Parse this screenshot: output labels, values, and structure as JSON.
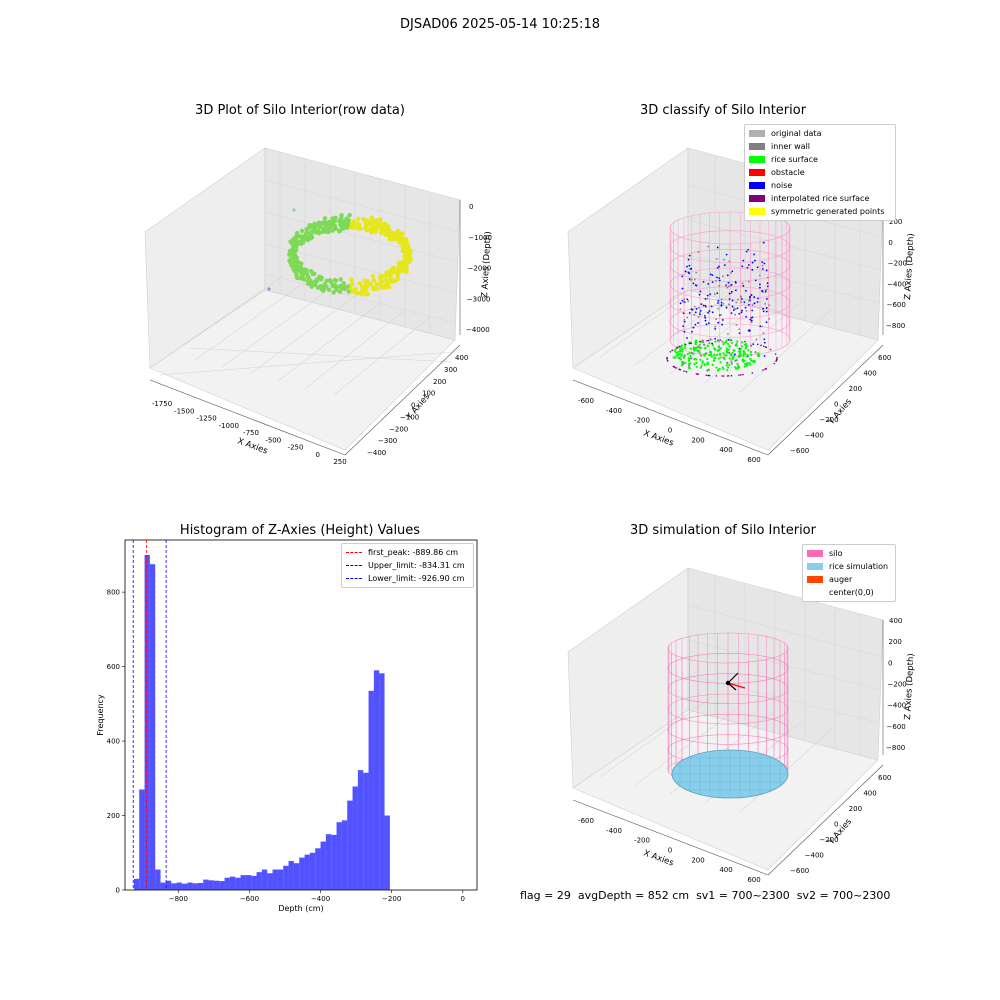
{
  "suptitle": "DJSAD06 2025-05-14 10:25:18",
  "footer": {
    "flag": "flag = 29",
    "avg_depth": "avgDepth = 852 cm",
    "sv1": "sv1 = 700~2300",
    "sv2": "sv2 = 700~2300"
  },
  "panels": {
    "raw": {
      "title": "3D Plot of Silo Interior(row data)",
      "xlabel": "X Axies",
      "ylabel": "Y Axies",
      "zlabel": "Z Axies (Depth)",
      "xticks": [
        "-1750",
        "-1500",
        "-1250",
        "-1000",
        "-750",
        "-500",
        "-250",
        "0",
        "250"
      ],
      "yticks": [
        "400",
        "300",
        "200",
        "100",
        "0",
        "−100",
        "−200",
        "−300",
        "−400"
      ],
      "zticks": [
        "0",
        "−1000",
        "−2000",
        "−3000",
        "−4000"
      ]
    },
    "classify": {
      "title": "3D classify of Silo Interior",
      "xlabel": "X Axies",
      "ylabel": "Y Axies",
      "zlabel": "Z Axies (Depth)",
      "xticks": [
        "-600",
        "-400",
        "-200",
        "0",
        "200",
        "400",
        "600"
      ],
      "yticks": [
        "600",
        "400",
        "200",
        "0",
        "−200",
        "−400",
        "−600"
      ],
      "zticks": [
        "200",
        "0",
        "−200",
        "−400",
        "−600",
        "−800"
      ],
      "legend": [
        {
          "label": "original data",
          "color": "#b0b0b0"
        },
        {
          "label": "inner wall",
          "color": "#808080"
        },
        {
          "label": "rice surface",
          "color": "#00ff00"
        },
        {
          "label": "obstacle",
          "color": "#ff0000"
        },
        {
          "label": "noise",
          "color": "#0000ff"
        },
        {
          "label": "interpolated rice surface",
          "color": "#800080"
        },
        {
          "label": "symmetric generated points",
          "color": "#ffff00"
        }
      ]
    },
    "simulation": {
      "title": "3D simulation of Silo Interior",
      "xlabel": "X Axies",
      "ylabel": "Y Axies",
      "zlabel": "Z Axies (Depth)",
      "xticks": [
        "-600",
        "-400",
        "-200",
        "0",
        "200",
        "400",
        "600"
      ],
      "yticks": [
        "600",
        "400",
        "200",
        "0",
        "−200",
        "−400",
        "−600"
      ],
      "zticks": [
        "400",
        "200",
        "0",
        "−200",
        "−400",
        "−600",
        "−800"
      ],
      "legend": [
        {
          "label": "silo",
          "color": "#ff69b4"
        },
        {
          "label": "rice simulation",
          "color": "#87ceeb"
        },
        {
          "label": "auger",
          "color": "#ff4500"
        },
        {
          "label": "center(0,0)",
          "color": "#ffffff"
        }
      ]
    }
  },
  "chart_data": {
    "type": "bar",
    "title": "Histogram of Z-Axies (Height) Values",
    "xlabel": "Depth (cm)",
    "ylabel": "Frequency",
    "xlim": [
      -950,
      40
    ],
    "ylim": [
      0,
      940
    ],
    "xticks": [
      -800,
      -600,
      -400,
      -200,
      0
    ],
    "yticks": [
      0,
      200,
      400,
      600,
      800
    ],
    "bar_color": "#0000ff",
    "bins": {
      "left_edges": [
        -925,
        -910,
        -895,
        -880,
        -865,
        -850,
        -835,
        -820,
        -805,
        -790,
        -775,
        -760,
        -745,
        -730,
        -715,
        -700,
        -685,
        -670,
        -655,
        -640,
        -625,
        -610,
        -595,
        -580,
        -565,
        -550,
        -535,
        -520,
        -505,
        -490,
        -475,
        -460,
        -445,
        -430,
        -415,
        -400,
        -385,
        -370,
        -355,
        -340,
        -325,
        -310,
        -295,
        -280,
        -265,
        -250,
        -235,
        -220,
        -205,
        -190,
        -175,
        -160,
        -145,
        -130,
        -115,
        -100,
        -85,
        -70,
        -55,
        -40,
        -25,
        -10
      ],
      "width": 15,
      "values": [
        30,
        270,
        900,
        875,
        55,
        20,
        25,
        18,
        20,
        17,
        20,
        18,
        19,
        28,
        26,
        25,
        24,
        33,
        36,
        33,
        40,
        40,
        38,
        48,
        55,
        45,
        55,
        55,
        65,
        78,
        72,
        87,
        95,
        100,
        112,
        130,
        150,
        148,
        182,
        187,
        240,
        278,
        322,
        315,
        535,
        590,
        582,
        200,
        0,
        0,
        0,
        0,
        0,
        0,
        0,
        0,
        0,
        0,
        0,
        0,
        0,
        0
      ],
      "note_on_values": ""
    },
    "vlines": [
      {
        "x": -889.86,
        "label": "first_peak: -889.86 cm",
        "color": "#ff0000",
        "style": "dashed"
      },
      {
        "x": -834.31,
        "label": "Upper_limit: -834.31 cm",
        "color": "#0000ff",
        "style": "dashed"
      },
      {
        "x": -926.9,
        "label": "Lower_limit: -926.90 cm",
        "color": "#0000ff",
        "style": "dashed"
      }
    ],
    "legend_position": "upper right"
  }
}
